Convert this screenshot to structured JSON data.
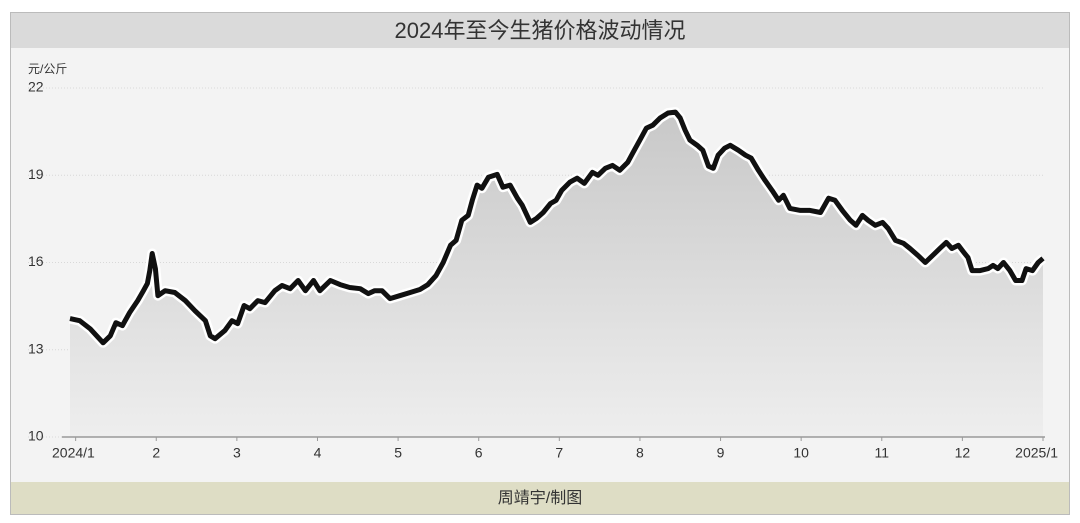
{
  "chart_data": {
    "type": "line",
    "title": "2024年至今生猪价格波动情况",
    "y_unit": "元/公斤",
    "credit": "周靖宇/制图",
    "xlim": [
      0.93,
      13
    ],
    "ylim": [
      10,
      22
    ],
    "xticks": [
      {
        "value": 1,
        "label": "2024/1"
      },
      2,
      3,
      4,
      5,
      6,
      7,
      8,
      9,
      10,
      11,
      12,
      {
        "value": 13,
        "label": "2025/1"
      }
    ],
    "yticks": [
      10,
      13,
      16,
      19,
      22
    ],
    "grid": true,
    "color": "#111111",
    "x": [
      0.93,
      1.05,
      1.18,
      1.34,
      1.43,
      1.5,
      1.58,
      1.67,
      1.77,
      1.84,
      1.89,
      1.92,
      1.95,
      1.99,
      2.02,
      2.11,
      2.23,
      2.36,
      2.48,
      2.61,
      2.67,
      2.73,
      2.85,
      2.94,
      3.01,
      3.09,
      3.16,
      3.26,
      3.35,
      3.47,
      3.56,
      3.66,
      3.76,
      3.85,
      3.95,
      4.03,
      4.16,
      4.28,
      4.4,
      4.53,
      4.63,
      4.71,
      4.8,
      4.9,
      5.02,
      5.15,
      5.27,
      5.37,
      5.47,
      5.56,
      5.65,
      5.72,
      5.79,
      5.87,
      5.92,
      5.98,
      6.04,
      6.12,
      6.23,
      6.3,
      6.39,
      6.48,
      6.54,
      6.64,
      6.72,
      6.8,
      6.89,
      6.96,
      7.03,
      7.13,
      7.22,
      7.31,
      7.41,
      7.48,
      7.57,
      7.66,
      7.75,
      7.85,
      7.93,
      8.0,
      8.08,
      8.16,
      8.25,
      8.35,
      8.44,
      8.5,
      8.56,
      8.62,
      8.71,
      8.78,
      8.85,
      8.91,
      8.97,
      9.05,
      9.12,
      9.22,
      9.31,
      9.38,
      9.47,
      9.55,
      9.64,
      9.72,
      9.78,
      9.86,
      9.99,
      10.11,
      10.24,
      10.34,
      10.42,
      10.51,
      10.61,
      10.68,
      10.76,
      10.83,
      10.92,
      11.01,
      11.08,
      11.17,
      11.27,
      11.35,
      11.45,
      11.54,
      11.63,
      11.72,
      11.8,
      11.87,
      11.95,
      12.02,
      12.07,
      12.12,
      12.22,
      12.32,
      12.38,
      12.44,
      12.51,
      12.59,
      12.66,
      12.74,
      12.79,
      12.87,
      12.94,
      13.0
    ],
    "values": [
      14.07,
      14.0,
      13.72,
      13.24,
      13.48,
      13.93,
      13.83,
      14.28,
      14.69,
      15.03,
      15.28,
      15.72,
      16.31,
      15.79,
      14.86,
      15.03,
      14.97,
      14.69,
      14.34,
      14.0,
      13.48,
      13.38,
      13.66,
      14.0,
      13.9,
      14.52,
      14.41,
      14.69,
      14.62,
      15.03,
      15.21,
      15.1,
      15.38,
      15.03,
      15.38,
      15.03,
      15.38,
      15.24,
      15.14,
      15.1,
      14.93,
      15.03,
      15.03,
      14.76,
      14.86,
      14.97,
      15.07,
      15.24,
      15.55,
      16.0,
      16.59,
      16.76,
      17.45,
      17.62,
      18.14,
      18.66,
      18.55,
      18.93,
      19.03,
      18.59,
      18.66,
      18.21,
      17.97,
      17.38,
      17.52,
      17.72,
      18.03,
      18.14,
      18.48,
      18.76,
      18.9,
      18.72,
      19.1,
      19.0,
      19.24,
      19.34,
      19.17,
      19.45,
      19.86,
      20.21,
      20.62,
      20.72,
      20.97,
      21.14,
      21.17,
      20.97,
      20.55,
      20.21,
      20.03,
      19.86,
      19.31,
      19.24,
      19.69,
      19.93,
      20.03,
      19.86,
      19.69,
      19.59,
      19.17,
      18.83,
      18.48,
      18.14,
      18.31,
      17.86,
      17.79,
      17.79,
      17.72,
      18.21,
      18.14,
      17.79,
      17.45,
      17.28,
      17.62,
      17.45,
      17.28,
      17.38,
      17.17,
      16.76,
      16.66,
      16.48,
      16.24,
      16.0,
      16.24,
      16.48,
      16.69,
      16.48,
      16.59,
      16.34,
      16.17,
      15.72,
      15.72,
      15.79,
      15.9,
      15.79,
      16.0,
      15.72,
      15.38,
      15.38,
      15.79,
      15.72,
      16.0,
      16.14
    ]
  }
}
